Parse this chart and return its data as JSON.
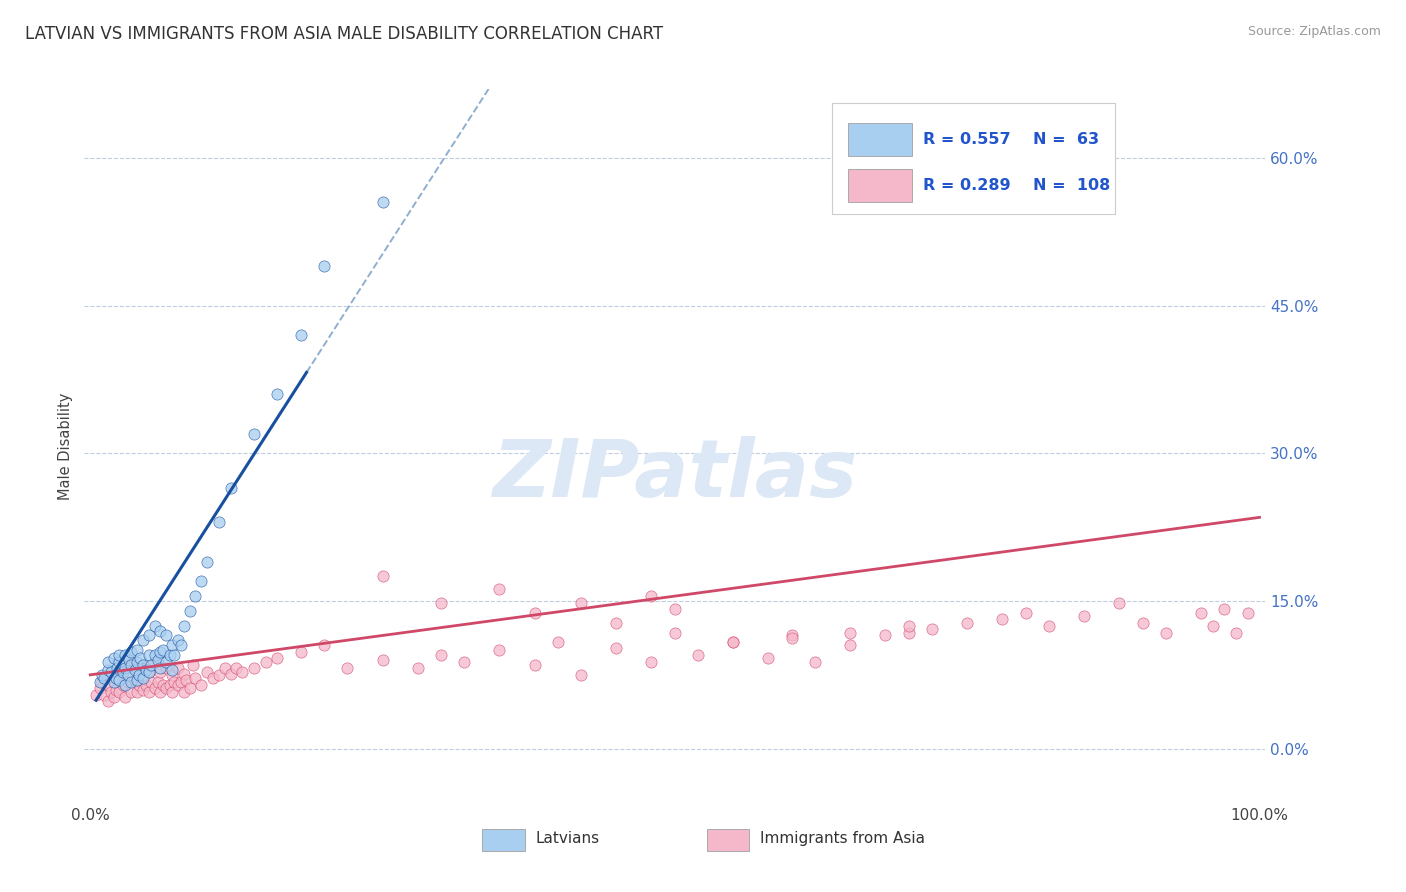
{
  "title": "LATVIAN VS IMMIGRANTS FROM ASIA MALE DISABILITY CORRELATION CHART",
  "source": "Source: ZipAtlas.com",
  "ylabel": "Male Disability",
  "xlim": [
    -0.005,
    1.005
  ],
  "ylim": [
    -0.055,
    0.67
  ],
  "yticks": [
    0.0,
    0.15,
    0.3,
    0.45,
    0.6
  ],
  "ytick_labels": [
    "0.0%",
    "15.0%",
    "30.0%",
    "45.0%",
    "60.0%"
  ],
  "xticks": [
    0.0,
    1.0
  ],
  "xtick_labels": [
    "0.0%",
    "100.0%"
  ],
  "legend_R1": "0.557",
  "legend_N1": "63",
  "legend_R2": "0.289",
  "legend_N2": "108",
  "color_latvian": "#A8CEF0",
  "color_asia": "#F5B8CB",
  "color_line_latvian": "#1850A0",
  "color_line_asia": "#D04868",
  "color_dashed": "#90AECE",
  "watermark": "ZIPatlas",
  "watermark_color": "#DCE8F6",
  "background_color": "#FFFFFF",
  "title_fontsize": 12,
  "latvian_x": [
    0.008,
    0.01,
    0.012,
    0.015,
    0.015,
    0.018,
    0.02,
    0.02,
    0.022,
    0.023,
    0.025,
    0.025,
    0.025,
    0.028,
    0.03,
    0.03,
    0.03,
    0.032,
    0.033,
    0.035,
    0.035,
    0.035,
    0.038,
    0.04,
    0.04,
    0.04,
    0.042,
    0.043,
    0.045,
    0.045,
    0.045,
    0.048,
    0.05,
    0.05,
    0.05,
    0.052,
    0.055,
    0.055,
    0.058,
    0.06,
    0.06,
    0.06,
    0.062,
    0.065,
    0.065,
    0.068,
    0.07,
    0.07,
    0.072,
    0.075,
    0.078,
    0.08,
    0.085,
    0.09,
    0.095,
    0.1,
    0.11,
    0.12,
    0.14,
    0.16,
    0.18,
    0.2,
    0.25
  ],
  "latvian_y": [
    0.068,
    0.075,
    0.072,
    0.08,
    0.088,
    0.078,
    0.068,
    0.092,
    0.072,
    0.082,
    0.07,
    0.088,
    0.095,
    0.078,
    0.065,
    0.082,
    0.095,
    0.075,
    0.09,
    0.068,
    0.085,
    0.098,
    0.08,
    0.07,
    0.088,
    0.1,
    0.075,
    0.092,
    0.072,
    0.085,
    0.11,
    0.08,
    0.078,
    0.095,
    0.115,
    0.085,
    0.095,
    0.125,
    0.09,
    0.082,
    0.098,
    0.12,
    0.1,
    0.088,
    0.115,
    0.095,
    0.08,
    0.105,
    0.095,
    0.11,
    0.105,
    0.125,
    0.14,
    0.155,
    0.17,
    0.19,
    0.23,
    0.265,
    0.32,
    0.36,
    0.42,
    0.49,
    0.555
  ],
  "asia_x": [
    0.005,
    0.008,
    0.01,
    0.012,
    0.015,
    0.015,
    0.018,
    0.02,
    0.02,
    0.022,
    0.025,
    0.025,
    0.028,
    0.03,
    0.03,
    0.032,
    0.035,
    0.035,
    0.038,
    0.04,
    0.04,
    0.042,
    0.045,
    0.045,
    0.048,
    0.05,
    0.05,
    0.052,
    0.055,
    0.055,
    0.058,
    0.06,
    0.06,
    0.062,
    0.065,
    0.065,
    0.068,
    0.07,
    0.07,
    0.072,
    0.075,
    0.075,
    0.078,
    0.08,
    0.08,
    0.082,
    0.085,
    0.088,
    0.09,
    0.095,
    0.1,
    0.105,
    0.11,
    0.115,
    0.12,
    0.125,
    0.13,
    0.14,
    0.15,
    0.16,
    0.18,
    0.2,
    0.22,
    0.25,
    0.28,
    0.3,
    0.32,
    0.35,
    0.38,
    0.4,
    0.42,
    0.45,
    0.48,
    0.5,
    0.52,
    0.55,
    0.58,
    0.6,
    0.62,
    0.65,
    0.68,
    0.7,
    0.72,
    0.75,
    0.78,
    0.8,
    0.82,
    0.85,
    0.88,
    0.9,
    0.92,
    0.95,
    0.96,
    0.97,
    0.98,
    0.99,
    0.25,
    0.3,
    0.35,
    0.38,
    0.42,
    0.45,
    0.48,
    0.5,
    0.55,
    0.6,
    0.65,
    0.7
  ],
  "asia_y": [
    0.055,
    0.062,
    0.068,
    0.055,
    0.048,
    0.065,
    0.058,
    0.052,
    0.072,
    0.06,
    0.058,
    0.078,
    0.065,
    0.052,
    0.082,
    0.068,
    0.058,
    0.088,
    0.07,
    0.058,
    0.078,
    0.065,
    0.06,
    0.082,
    0.065,
    0.058,
    0.078,
    0.068,
    0.062,
    0.088,
    0.068,
    0.058,
    0.078,
    0.065,
    0.062,
    0.082,
    0.065,
    0.058,
    0.075,
    0.068,
    0.065,
    0.082,
    0.068,
    0.058,
    0.076,
    0.07,
    0.062,
    0.085,
    0.072,
    0.065,
    0.078,
    0.072,
    0.075,
    0.082,
    0.076,
    0.082,
    0.078,
    0.082,
    0.088,
    0.092,
    0.098,
    0.105,
    0.082,
    0.09,
    0.082,
    0.095,
    0.088,
    0.1,
    0.085,
    0.108,
    0.075,
    0.102,
    0.088,
    0.118,
    0.095,
    0.108,
    0.092,
    0.115,
    0.088,
    0.105,
    0.115,
    0.118,
    0.122,
    0.128,
    0.132,
    0.138,
    0.125,
    0.135,
    0.148,
    0.128,
    0.118,
    0.138,
    0.125,
    0.142,
    0.118,
    0.138,
    0.175,
    0.148,
    0.162,
    0.138,
    0.148,
    0.128,
    0.155,
    0.142,
    0.108,
    0.112,
    0.118,
    0.125
  ],
  "blue_line_x": [
    0.005,
    0.185
  ],
  "blue_line_y_intercept": 0.04,
  "blue_line_slope": 1.85,
  "pink_line_x": [
    0.0,
    1.0
  ],
  "pink_line_y_start": 0.075,
  "pink_line_y_end": 0.235
}
